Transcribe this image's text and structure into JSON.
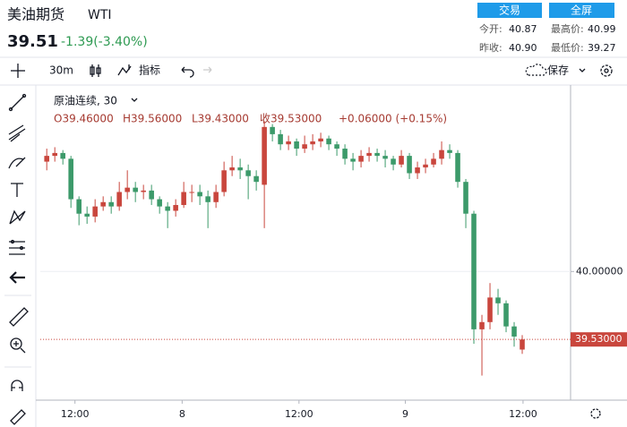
{
  "header": {
    "name": "美油期货",
    "symbol": "WTI",
    "price": "39.51",
    "change": "-1.39(-3.40%)",
    "trade_button": "交易",
    "fullscreen_button": "全屏",
    "stats": [
      {
        "label": "今开:",
        "value": "40.87"
      },
      {
        "label": "最高价:",
        "value": "40.99"
      },
      {
        "label": "昨收:",
        "value": "40.90"
      },
      {
        "label": "最低价:",
        "value": "39.27"
      }
    ]
  },
  "toolbar": {
    "interval": "30m",
    "indicators": "指标",
    "save": "保存"
  },
  "legend": {
    "title": "原油连续, 30",
    "ohlc": [
      "O39.46000",
      "H39.56000",
      "L39.43000",
      "收39.53000",
      "+0.06000 (+0.15%)"
    ]
  },
  "chart_data": {
    "type": "candlestick",
    "up_color": "#c9463d",
    "down_color": "#3c9a6a",
    "grid": true,
    "open": [
      40.76,
      40.8,
      40.82,
      40.78,
      40.5,
      40.4,
      40.38,
      40.45,
      40.48,
      40.45,
      40.55,
      40.58,
      40.55,
      40.56,
      40.5,
      40.45,
      40.42,
      40.46,
      40.55,
      40.55,
      40.52,
      40.48,
      40.55,
      40.7,
      40.72,
      40.7,
      40.66,
      40.6,
      41.0,
      40.95,
      40.88,
      40.9,
      40.85,
      40.88,
      40.9,
      40.92,
      40.88,
      40.85,
      40.78,
      40.76,
      40.8,
      40.82,
      40.8,
      40.78,
      40.74,
      40.8,
      40.68,
      40.72,
      40.74,
      40.78,
      40.84,
      40.82,
      40.62,
      40.4,
      39.6,
      39.65,
      39.82,
      39.78,
      39.62,
      39.46
    ],
    "high": [
      40.85,
      40.86,
      40.84,
      40.8,
      40.52,
      40.45,
      40.5,
      40.52,
      40.52,
      40.62,
      40.7,
      40.62,
      40.6,
      40.6,
      40.52,
      40.48,
      40.5,
      40.62,
      40.6,
      40.6,
      40.56,
      40.6,
      40.76,
      40.8,
      40.78,
      40.74,
      40.7,
      41.04,
      41.02,
      40.98,
      40.94,
      40.92,
      40.94,
      40.95,
      40.96,
      40.94,
      40.9,
      40.88,
      40.82,
      40.84,
      40.86,
      40.85,
      40.84,
      40.8,
      40.84,
      40.82,
      40.76,
      40.78,
      40.82,
      40.9,
      40.88,
      40.84,
      40.64,
      40.42,
      39.7,
      39.92,
      39.88,
      39.8,
      39.65,
      39.56
    ],
    "low": [
      40.7,
      40.76,
      40.74,
      40.44,
      40.32,
      40.33,
      40.34,
      40.42,
      40.4,
      40.42,
      40.5,
      40.48,
      40.5,
      40.46,
      40.4,
      40.3,
      40.38,
      40.44,
      40.48,
      40.46,
      40.3,
      40.44,
      40.52,
      40.66,
      40.64,
      40.5,
      40.56,
      40.3,
      40.9,
      40.84,
      40.84,
      40.8,
      40.82,
      40.84,
      40.86,
      40.84,
      40.8,
      40.74,
      40.7,
      40.72,
      40.76,
      40.76,
      40.72,
      40.7,
      40.72,
      40.64,
      40.64,
      40.68,
      40.72,
      40.74,
      40.78,
      40.58,
      40.3,
      39.5,
      39.28,
      39.6,
      39.7,
      39.58,
      39.48,
      39.43
    ],
    "close": [
      40.8,
      40.82,
      40.78,
      40.5,
      40.4,
      40.38,
      40.45,
      40.48,
      40.45,
      40.55,
      40.58,
      40.55,
      40.56,
      40.5,
      40.45,
      40.42,
      40.46,
      40.55,
      40.55,
      40.52,
      40.48,
      40.55,
      40.7,
      40.72,
      40.7,
      40.66,
      40.62,
      41.0,
      40.95,
      40.88,
      40.9,
      40.85,
      40.88,
      40.9,
      40.92,
      40.88,
      40.85,
      40.78,
      40.76,
      40.8,
      40.82,
      40.8,
      40.78,
      40.74,
      40.8,
      40.68,
      40.72,
      40.74,
      40.78,
      40.84,
      40.82,
      40.62,
      40.4,
      39.6,
      39.65,
      39.82,
      39.78,
      39.62,
      39.55,
      39.53
    ],
    "xlim": [
      -0.8,
      65
    ],
    "xticks": [
      {
        "value": 3.5,
        "label": "12:00"
      },
      {
        "value": 16.8,
        "label": "8"
      },
      {
        "value": 31.3,
        "label": "12:00"
      },
      {
        "value": 44.5,
        "label": "9"
      },
      {
        "value": 59.1,
        "label": "12:00"
      }
    ],
    "ylim": [
      39.11,
      41.29
    ],
    "yticks": [
      {
        "value": 40,
        "label": "40.00000"
      }
    ],
    "last_price": {
      "value": 39.53,
      "label": "39.53000"
    }
  }
}
